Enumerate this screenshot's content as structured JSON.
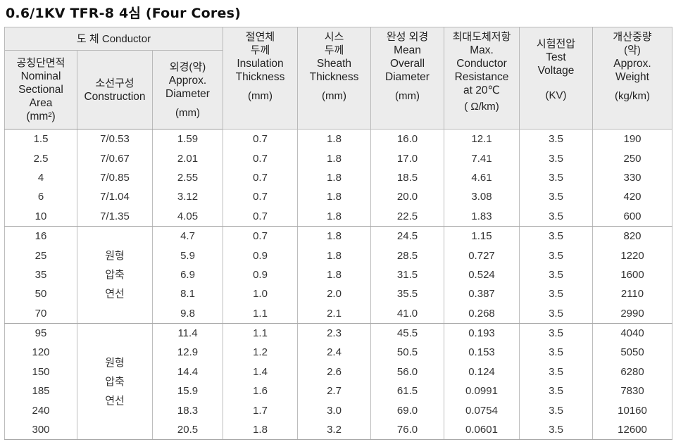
{
  "title": "0.6/1KV TFR-8 4심 (Four Cores)",
  "headers": {
    "conductor_group": "도 체 Conductor",
    "area": {
      "kr": "공칭단면적",
      "en1": "Nominal",
      "en2": "Sectional",
      "en3": "Area",
      "unit": "(mm²)"
    },
    "construction": {
      "kr": "소선구성",
      "en": "Construction"
    },
    "diameter": {
      "kr": "외경(약)",
      "en1": "Approx.",
      "en2": "Diameter",
      "unit": "(mm)"
    },
    "insulation": {
      "kr1": "절연체",
      "kr2": "두께",
      "en1": "Insulation",
      "en2": "Thickness",
      "unit": "(mm)"
    },
    "sheath": {
      "kr1": "시스",
      "kr2": "두께",
      "en1": "Sheath",
      "en2": "Thickness",
      "unit": "(mm)"
    },
    "overall": {
      "kr": "완성 외경",
      "en1": "Mean",
      "en2": "Overall",
      "en3": "Diameter",
      "unit": "(mm)"
    },
    "resistance": {
      "kr": "최대도체저항",
      "en1": "Max.",
      "en2": "Conductor",
      "en3": "Resistance",
      "en4": "at 20℃",
      "unit": "( Ω/km)"
    },
    "voltage": {
      "kr": "시험전압",
      "en1": "Test",
      "en2": "Voltage",
      "unit": "(KV)"
    },
    "weight": {
      "kr1": "개산중량",
      "kr2": "(약)",
      "en1": "Approx.",
      "en2": "Weight",
      "unit": "(kg/km)"
    }
  },
  "merged_construction_label": {
    "line1": "원형",
    "line2": "압축",
    "line3": "연선"
  },
  "groups": [
    {
      "rows": [
        {
          "area": "1.5",
          "construction": "7/0.53",
          "diameter": "1.59",
          "insulation": "0.7",
          "sheath": "1.8",
          "overall": "16.0",
          "resistance": "12.1",
          "voltage": "3.5",
          "weight": "190"
        },
        {
          "area": "2.5",
          "construction": "7/0.67",
          "diameter": "2.01",
          "insulation": "0.7",
          "sheath": "1.8",
          "overall": "17.0",
          "resistance": "7.41",
          "voltage": "3.5",
          "weight": "250"
        },
        {
          "area": "4",
          "construction": "7/0.85",
          "diameter": "2.55",
          "insulation": "0.7",
          "sheath": "1.8",
          "overall": "18.5",
          "resistance": "4.61",
          "voltage": "3.5",
          "weight": "330"
        },
        {
          "area": "6",
          "construction": "7/1.04",
          "diameter": "3.12",
          "insulation": "0.7",
          "sheath": "1.8",
          "overall": "20.0",
          "resistance": "3.08",
          "voltage": "3.5",
          "weight": "420"
        },
        {
          "area": "10",
          "construction": "7/1.35",
          "diameter": "4.05",
          "insulation": "0.7",
          "sheath": "1.8",
          "overall": "22.5",
          "resistance": "1.83",
          "voltage": "3.5",
          "weight": "600"
        }
      ]
    },
    {
      "rows": [
        {
          "area": "16",
          "diameter": "4.7",
          "insulation": "0.7",
          "sheath": "1.8",
          "overall": "24.5",
          "resistance": "1.15",
          "voltage": "3.5",
          "weight": "820"
        },
        {
          "area": "25",
          "diameter": "5.9",
          "insulation": "0.9",
          "sheath": "1.8",
          "overall": "28.5",
          "resistance": "0.727",
          "voltage": "3.5",
          "weight": "1220"
        },
        {
          "area": "35",
          "diameter": "6.9",
          "insulation": "0.9",
          "sheath": "1.8",
          "overall": "31.5",
          "resistance": "0.524",
          "voltage": "3.5",
          "weight": "1600"
        },
        {
          "area": "50",
          "diameter": "8.1",
          "insulation": "1.0",
          "sheath": "2.0",
          "overall": "35.5",
          "resistance": "0.387",
          "voltage": "3.5",
          "weight": "2110"
        },
        {
          "area": "70",
          "diameter": "9.8",
          "insulation": "1.1",
          "sheath": "2.1",
          "overall": "41.0",
          "resistance": "0.268",
          "voltage": "3.5",
          "weight": "2990"
        }
      ]
    },
    {
      "rows": [
        {
          "area": "95",
          "diameter": "11.4",
          "insulation": "1.1",
          "sheath": "2.3",
          "overall": "45.5",
          "resistance": "0.193",
          "voltage": "3.5",
          "weight": "4040"
        },
        {
          "area": "120",
          "diameter": "12.9",
          "insulation": "1.2",
          "sheath": "2.4",
          "overall": "50.5",
          "resistance": "0.153",
          "voltage": "3.5",
          "weight": "5050"
        },
        {
          "area": "150",
          "diameter": "14.4",
          "insulation": "1.4",
          "sheath": "2.6",
          "overall": "56.0",
          "resistance": "0.124",
          "voltage": "3.5",
          "weight": "6280"
        },
        {
          "area": "185",
          "diameter": "15.9",
          "insulation": "1.6",
          "sheath": "2.7",
          "overall": "61.5",
          "resistance": "0.0991",
          "voltage": "3.5",
          "weight": "7830"
        },
        {
          "area": "240",
          "diameter": "18.3",
          "insulation": "1.7",
          "sheath": "3.0",
          "overall": "69.0",
          "resistance": "0.0754",
          "voltage": "3.5",
          "weight": "10160"
        },
        {
          "area": "300",
          "diameter": "20.5",
          "insulation": "1.8",
          "sheath": "3.2",
          "overall": "76.0",
          "resistance": "0.0601",
          "voltage": "3.5",
          "weight": "12600"
        }
      ]
    }
  ]
}
